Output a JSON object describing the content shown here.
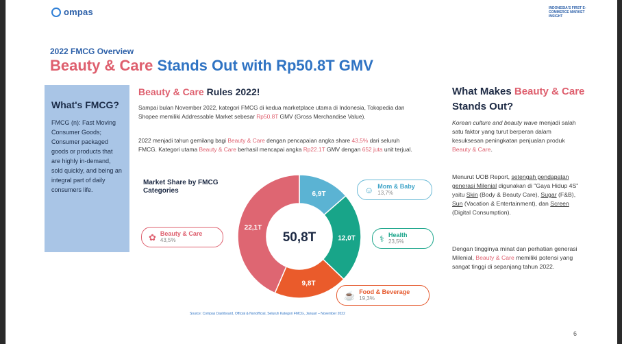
{
  "brand": {
    "logo_text": "ompas",
    "tagline": "INDONESIA'S FIRST E-COMMERCE MARKET INSIGHT"
  },
  "header": {
    "eyebrow": "2022 FMCG Overview",
    "title_red": "Beauty & Care",
    "title_blue": "Stands Out with Rp50.8T GMV"
  },
  "sidebar": {
    "heading": "What's FMCG?",
    "body": "FMCG (n): Fast Moving Consumer Goods; Consumer packaged goods or products that are highly in-demand, sold quickly, and being an integral part of daily consumers life."
  },
  "middle": {
    "title_red": "Beauty & Care",
    "title_rest": " Rules 2022!",
    "p1_a": "Sampai bulan November 2022, kategori FMCG di kedua marketplace utama di Indonesia, Tokopedia dan Shopee memiliki Addressable Market sebesar ",
    "p1_b": "Rp50.8T",
    "p1_c": " GMV (Gross Merchandise Value).",
    "p2_a": "2022 menjadi tahun gemilang bagi ",
    "p2_b": "Beauty & Care",
    "p2_c": " dengan pencapaian angka share ",
    "p2_d": "43,5%",
    "p2_e": " dari seluruh FMCG. Kategori utama ",
    "p2_f": "Beauty & Care",
    "p2_g": " berhasil mencapai angka ",
    "p2_h": "Rp22.1T",
    "p2_i": " GMV dengan ",
    "p2_j": "652 juta",
    "p2_k": " unit terjual.",
    "source": "Source: Compas Dashboard, Official & Nonofficial, Seluruh Kategori FMCG, Januari – November 2022"
  },
  "chart_data": {
    "type": "pie",
    "title": "Market Share by FMCG Categories",
    "center_label": "50,8T",
    "slices": [
      {
        "name": "Mom & Baby",
        "value": 6.9,
        "label": "6,9T",
        "share": "13,7%",
        "color": "#5bb3d3",
        "icon": "baby-icon"
      },
      {
        "name": "Health",
        "value": 12.0,
        "label": "12,0T",
        "share": "23,5%",
        "color": "#18a589",
        "icon": "stethoscope-icon"
      },
      {
        "name": "Food & Beverage",
        "value": 9.8,
        "label": "9,8T",
        "share": "19,3%",
        "color": "#ea5b2b",
        "icon": "food-icon"
      },
      {
        "name": "Beauty & Care",
        "value": 22.1,
        "label": "22,1T",
        "share": "43,5%",
        "color": "#de6672",
        "icon": "beauty-icon"
      }
    ]
  },
  "right": {
    "title_a": "What Makes ",
    "title_red": "Beauty & Care",
    "title_b": " Stands Out?",
    "r1_a": "Korean culture and beauty wave",
    "r1_b": " menjadi salah satu faktor yang turut berperan dalam kesuksesan peningkatan penjualan produk ",
    "r1_c": "Beauty & Care",
    "r1_d": ".",
    "r2_a": "Menurut UOB Report, ",
    "r2_b": "setengah pendapatan generasi Milenial",
    "r2_c": " digunakan di \"Gaya Hidup 4S\" yaitu ",
    "r2_d": "Skin",
    "r2_e": " (Body & Beauty Care), ",
    "r2_f": "Sugar",
    "r2_g": " (F&B), ",
    "r2_h": "Sun",
    "r2_i": " (Vacation & Entertainment), dan ",
    "r2_j": "Screen",
    "r2_k": " (Digital Consumption).",
    "r3_a": "Dengan tingginya minat dan perhatian generasi Milenial, ",
    "r3_b": "Beauty & Care",
    "r3_c": " memiliki potensi yang sangat tinggi di sepanjang tahun 2022."
  },
  "page_number": "6"
}
